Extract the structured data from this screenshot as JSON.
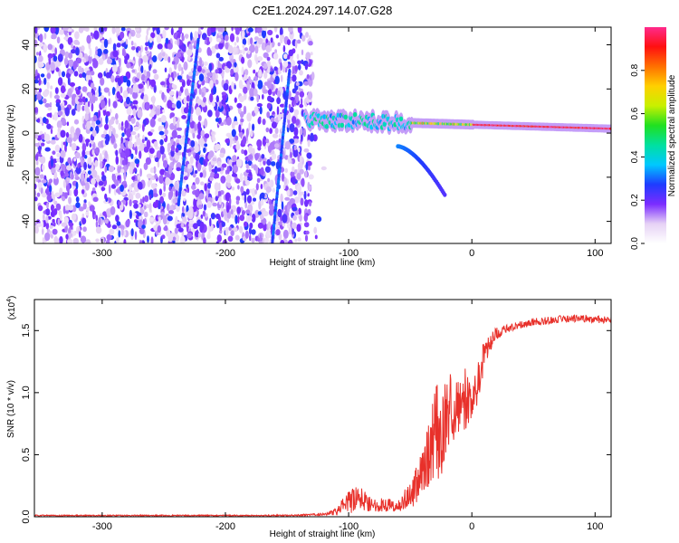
{
  "figure": {
    "title": "C2E1.2024.297.14.07.G28"
  },
  "colors": {
    "snr_line": "#e8302a",
    "axis": "#000000",
    "background": "#ffffff"
  },
  "chart_data": [
    {
      "type": "heatmap",
      "title": "",
      "xlabel": "Height of straight line (km)",
      "ylabel": "Frequency (Hz)",
      "xlim": [
        -355,
        113
      ],
      "ylim": [
        -50,
        48
      ],
      "xticks": [
        -300,
        -200,
        -100,
        0,
        100
      ],
      "yticks": [
        -40,
        -20,
        0,
        20,
        40
      ],
      "colorbar": {
        "label": "Normalized spectral amplitude",
        "ticks": [
          0.0,
          0.2,
          0.4,
          0.6,
          0.8
        ],
        "range": [
          0,
          1
        ],
        "stops": [
          "#ffffff",
          "#e6d2f5",
          "#7b2cff",
          "#1e3cff",
          "#00c8ff",
          "#00e0a0",
          "#20e020",
          "#c8f000",
          "#ffd000",
          "#ff7000",
          "#ff1010",
          "#ff2a8c"
        ]
      },
      "features": {
        "noise_region_km": [
          -355,
          -130
        ],
        "tone_line": {
          "from_km": -135,
          "to_km": 113,
          "start_freq_hz": 6,
          "end_freq_hz": 2
        },
        "descending_branch": {
          "from_km": -60,
          "to_km": -22,
          "start_freq_hz": -6,
          "end_freq_hz": -28
        },
        "streaks": [
          {
            "x_top_km": -222,
            "x_bottom_km": -238,
            "freq_top_hz": 42,
            "freq_bottom_hz": -32
          },
          {
            "x_top_km": -148,
            "x_bottom_km": -162,
            "freq_top_hz": 28,
            "freq_bottom_hz": -50
          }
        ]
      }
    },
    {
      "type": "line",
      "title": "",
      "xlabel": "Height of straight line (km)",
      "ylabel": "SNR (10 * v/v)",
      "y_multiplier": "(x10",
      "y_multiplier_exp": "4",
      "y_multiplier_close": ")",
      "xlim": [
        -355,
        113
      ],
      "ylim": [
        0,
        1.75
      ],
      "xticks": [
        -300,
        -200,
        -100,
        0,
        100
      ],
      "yticks": [
        "0.0",
        "0.5",
        "1.0",
        "1.5"
      ],
      "series": [
        {
          "x": [
            -355,
            -300,
            -250,
            -200,
            -150,
            -120,
            -110,
            -100,
            -90,
            -80,
            -70,
            -60,
            -50,
            -40,
            -35,
            -30,
            -25,
            -20,
            -15,
            -10,
            -5,
            0,
            5,
            10,
            15,
            20,
            30,
            40,
            50,
            60,
            70,
            80,
            90,
            100,
            113
          ],
          "y": [
            0.01,
            0.01,
            0.01,
            0.01,
            0.01,
            0.02,
            0.04,
            0.12,
            0.15,
            0.09,
            0.1,
            0.08,
            0.18,
            0.35,
            0.5,
            0.7,
            0.65,
            0.85,
            0.9,
            0.95,
            0.95,
            0.9,
            1.1,
            1.3,
            1.4,
            1.48,
            1.52,
            1.55,
            1.57,
            1.58,
            1.59,
            1.6,
            1.6,
            1.59,
            1.58
          ],
          "spread": [
            0.005,
            0.005,
            0.005,
            0.005,
            0.006,
            0.01,
            0.03,
            0.1,
            0.1,
            0.05,
            0.06,
            0.05,
            0.12,
            0.2,
            0.25,
            0.4,
            0.35,
            0.3,
            0.3,
            0.28,
            0.25,
            0.2,
            0.18,
            0.12,
            0.08,
            0.05,
            0.03,
            0.03,
            0.03,
            0.03,
            0.03,
            0.03,
            0.03,
            0.03,
            0.03
          ]
        }
      ]
    }
  ]
}
